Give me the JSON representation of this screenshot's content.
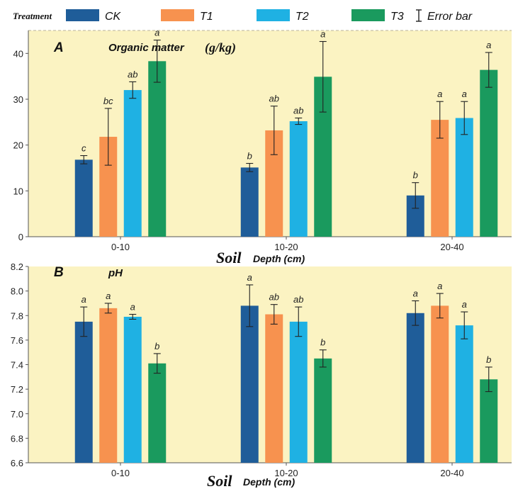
{
  "legend": {
    "title": "Treatment",
    "items": [
      {
        "label": "CK",
        "color": "#1f5d99"
      },
      {
        "label": "T1",
        "color": "#f7924f"
      },
      {
        "label": "T2",
        "color": "#1fb1e3"
      },
      {
        "label": "T3",
        "color": "#1a9a5e"
      }
    ],
    "error_label": "Error bar"
  },
  "xaxis": {
    "label_big": "Soil",
    "label_small": "Depth (cm)"
  },
  "chart_data": [
    {
      "type": "bar",
      "panel": "A",
      "title": "Organic matter",
      "unit": "(g/kg)",
      "categories": [
        "0-10",
        "10-20",
        "20-40"
      ],
      "ylim": [
        0,
        45
      ],
      "yticks": [
        "0",
        "10",
        "20",
        "30",
        "40"
      ],
      "ytick_values": [
        0,
        10,
        20,
        30,
        40
      ],
      "series": [
        {
          "name": "CK",
          "values": [
            16.8,
            15.1,
            9.0
          ],
          "errors": [
            0.9,
            0.9,
            2.8
          ],
          "letters": [
            "c",
            "b",
            "b"
          ]
        },
        {
          "name": "T1",
          "values": [
            21.8,
            23.2,
            25.5
          ],
          "errors": [
            6.2,
            5.3,
            4.0
          ],
          "letters": [
            "bc",
            "ab",
            "a"
          ]
        },
        {
          "name": "T2",
          "values": [
            32.0,
            25.2,
            25.9
          ],
          "errors": [
            1.8,
            0.7,
            3.6
          ],
          "letters": [
            "ab",
            "ab",
            "a"
          ]
        },
        {
          "name": "T3",
          "values": [
            38.3,
            34.9,
            36.4
          ],
          "errors": [
            4.6,
            7.7,
            3.8
          ],
          "letters": [
            "a",
            "a",
            "a"
          ]
        }
      ]
    },
    {
      "type": "bar",
      "panel": "B",
      "title": "pH",
      "unit": "",
      "categories": [
        "0-10",
        "10-20",
        "20-40"
      ],
      "ylim": [
        6.6,
        8.2
      ],
      "yticks": [
        "6.6",
        "6.8",
        "7.0",
        "7.2",
        "7.4",
        "7.6",
        "7.8",
        "8.0",
        "8.2"
      ],
      "ytick_values": [
        6.6,
        6.8,
        7.0,
        7.2,
        7.4,
        7.6,
        7.8,
        8.0,
        8.2
      ],
      "series": [
        {
          "name": "CK",
          "values": [
            7.75,
            7.88,
            7.82
          ],
          "errors": [
            0.12,
            0.17,
            0.1
          ],
          "letters": [
            "a",
            "a",
            "a"
          ]
        },
        {
          "name": "T1",
          "values": [
            7.86,
            7.81,
            7.88
          ],
          "errors": [
            0.04,
            0.08,
            0.1
          ],
          "letters": [
            "a",
            "ab",
            "a"
          ]
        },
        {
          "name": "T2",
          "values": [
            7.79,
            7.75,
            7.72
          ],
          "errors": [
            0.02,
            0.12,
            0.11
          ],
          "letters": [
            "a",
            "ab",
            "a"
          ]
        },
        {
          "name": "T3",
          "values": [
            7.41,
            7.45,
            7.28
          ],
          "errors": [
            0.08,
            0.07,
            0.1
          ],
          "letters": [
            "b",
            "b",
            "b"
          ]
        }
      ]
    }
  ]
}
